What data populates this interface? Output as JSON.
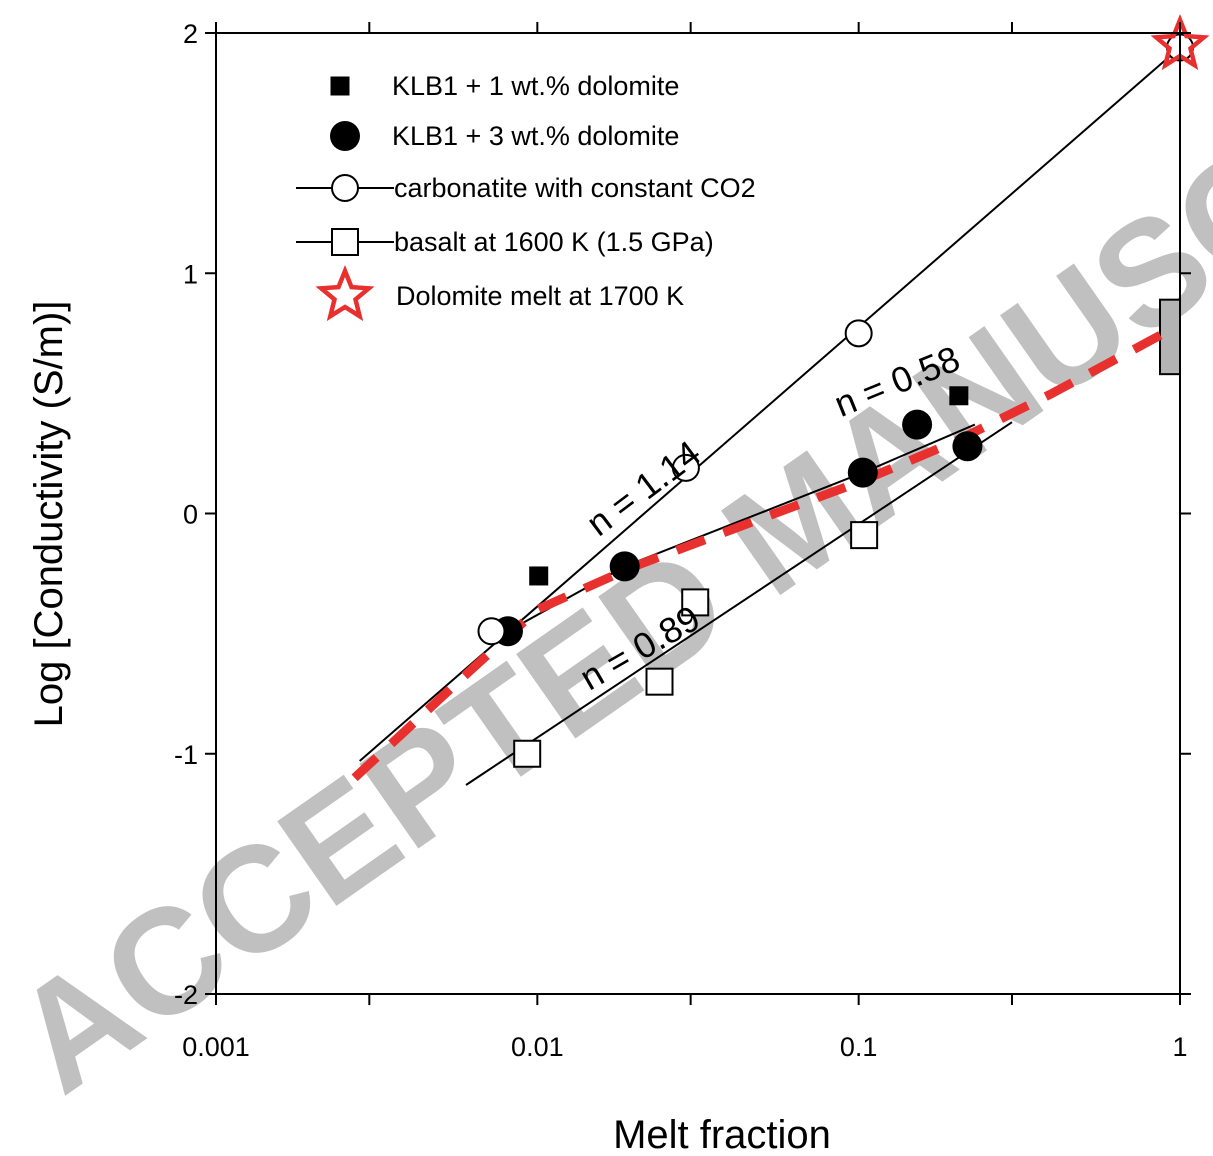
{
  "chart_data": {
    "type": "scatter",
    "title": "",
    "xlabel": "Melt fraction",
    "ylabel": "Log [Conductivity (S/m)]",
    "xscale": "log",
    "xlim": [
      0.001,
      1
    ],
    "ylim": [
      -2,
      2
    ],
    "x_ticks": [
      {
        "value": 0.001,
        "label": "0.001"
      },
      {
        "value": 0.01,
        "label": "0.01"
      },
      {
        "value": 0.1,
        "label": "0.1"
      },
      {
        "value": 1,
        "label": "1"
      }
    ],
    "y_ticks": [
      {
        "value": -2,
        "label": "-2"
      },
      {
        "value": -1,
        "label": "-1"
      },
      {
        "value": 0,
        "label": "0"
      },
      {
        "value": 1,
        "label": "1"
      },
      {
        "value": 2,
        "label": "2"
      }
    ],
    "grid": false,
    "legend_position": "top-left",
    "series": [
      {
        "name": "KLB1 + 1 wt.% dolomite",
        "marker": "filled-square",
        "color": "#000000",
        "points": [
          [
            0.0101,
            -0.26
          ],
          [
            0.205,
            0.49
          ]
        ]
      },
      {
        "name": "KLB1 + 3 wt.% dolomite",
        "marker": "filled-circle",
        "color": "#000000",
        "points": [
          [
            0.0081,
            -0.49
          ],
          [
            0.0187,
            -0.22
          ],
          [
            0.103,
            0.17
          ],
          [
            0.152,
            0.37
          ],
          [
            0.218,
            0.28
          ]
        ]
      },
      {
        "name": "carbonatite with constant CO2",
        "marker": "open-circle",
        "color": "#000000",
        "points": [
          [
            0.0072,
            -0.49
          ],
          [
            0.029,
            0.19
          ],
          [
            0.1,
            0.75
          ],
          [
            1.0,
            1.94
          ]
        ]
      },
      {
        "name": "basalt at 1600 K (1.5 GPa)",
        "marker": "open-square",
        "color": "#000000",
        "points": [
          [
            0.0093,
            -1.0
          ],
          [
            0.024,
            -0.7
          ],
          [
            0.031,
            -0.37
          ],
          [
            0.104,
            -0.09
          ]
        ]
      },
      {
        "name": "Dolomite melt at 1700 K",
        "marker": "open-star",
        "color": "#e8302e",
        "points": [
          [
            1.0,
            1.95
          ]
        ]
      }
    ],
    "lines": [
      {
        "label": "carbonatite fit",
        "style": "solid",
        "color": "#000000",
        "points": [
          [
            0.0028,
            -1.03
          ],
          [
            1.0,
            1.94
          ]
        ]
      },
      {
        "label": "basalt fit",
        "style": "solid",
        "color": "#000000",
        "points": [
          [
            0.006,
            -1.13
          ],
          [
            0.3,
            0.38
          ]
        ]
      },
      {
        "label": "KLB1 fit",
        "style": "solid",
        "color": "#000000",
        "points": [
          [
            0.0081,
            -0.49
          ],
          [
            0.0187,
            -0.22
          ],
          [
            0.103,
            0.17
          ],
          [
            0.23,
            0.37
          ]
        ]
      },
      {
        "label": "model",
        "style": "dashed",
        "color": "#e8302e",
        "points": [
          [
            0.0027,
            -1.1
          ],
          [
            0.006,
            -0.67
          ],
          [
            0.01,
            -0.4
          ],
          [
            0.02,
            -0.22
          ],
          [
            0.05,
            -0.02
          ],
          [
            0.1,
            0.13
          ],
          [
            0.2,
            0.3
          ],
          [
            0.4,
            0.5
          ],
          [
            0.95,
            0.77
          ]
        ]
      }
    ],
    "range_bar": {
      "x": 1.0,
      "y_low": 0.58,
      "y_high": 0.89,
      "color": "#b3b3b3"
    },
    "annotations": [
      {
        "text": "n = 1.14",
        "x": 0.0155,
        "y": -0.1,
        "angle": -37
      },
      {
        "text": "n =  0.58",
        "x": 0.088,
        "y": 0.4,
        "angle": -22
      },
      {
        "text": "n = 0.89",
        "x": 0.0145,
        "y": -0.74,
        "angle": -30
      }
    ]
  },
  "watermark": "ACCEPTED MANUSCRIPT"
}
